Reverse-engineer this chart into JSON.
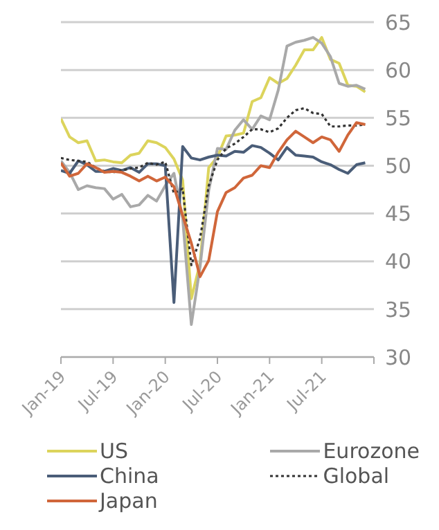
{
  "chart_data": {
    "type": "line",
    "x": [
      "2019-01",
      "2019-02",
      "2019-03",
      "2019-04",
      "2019-05",
      "2019-06",
      "2019-07",
      "2019-08",
      "2019-09",
      "2019-10",
      "2019-11",
      "2019-12",
      "2020-01",
      "2020-02",
      "2020-03",
      "2020-04",
      "2020-05",
      "2020-06",
      "2020-07",
      "2020-08",
      "2020-09",
      "2020-10",
      "2020-11",
      "2020-12",
      "2021-01",
      "2021-02",
      "2021-03",
      "2021-04",
      "2021-05",
      "2021-06",
      "2021-07",
      "2021-08",
      "2021-09",
      "2021-10",
      "2021-11",
      "2021-12"
    ],
    "series": [
      {
        "name": "US",
        "color": "#dcd45c",
        "values": [
          54.9,
          53.0,
          52.4,
          52.6,
          50.5,
          50.6,
          50.4,
          50.3,
          51.1,
          51.3,
          52.6,
          52.4,
          51.9,
          50.7,
          48.5,
          36.1,
          39.8,
          49.8,
          50.9,
          53.1,
          53.2,
          53.4,
          56.7,
          57.1,
          59.2,
          58.6,
          59.1,
          60.5,
          62.1,
          62.1,
          63.4,
          61.1,
          60.7,
          58.4,
          58.3,
          57.7
        ]
      },
      {
        "name": "Eurozone",
        "color": "#a9a9a9",
        "values": [
          50.5,
          49.3,
          47.5,
          47.9,
          47.7,
          47.6,
          46.5,
          47.0,
          45.7,
          45.9,
          46.9,
          46.3,
          47.9,
          49.2,
          44.5,
          33.4,
          39.4,
          47.4,
          51.8,
          51.7,
          53.7,
          54.8,
          53.8,
          55.2,
          54.8,
          57.9,
          62.5,
          62.9,
          63.1,
          63.4,
          62.8,
          61.4,
          58.6,
          58.3,
          58.4,
          58.0
        ]
      },
      {
        "name": "China",
        "color": "#4a5d78",
        "values": [
          49.5,
          49.2,
          50.5,
          50.1,
          49.4,
          49.4,
          49.7,
          49.5,
          49.8,
          49.3,
          50.2,
          50.2,
          50.0,
          35.7,
          52.0,
          50.8,
          50.6,
          50.9,
          51.1,
          51.0,
          51.5,
          51.4,
          52.1,
          51.9,
          51.3,
          50.6,
          51.9,
          51.1,
          51.0,
          50.9,
          50.4,
          50.1,
          49.6,
          49.2,
          50.1,
          50.3
        ]
      },
      {
        "name": "Global",
        "color": "#333333",
        "line_style": "dotted",
        "values": [
          50.8,
          50.6,
          50.5,
          50.4,
          49.8,
          49.4,
          49.3,
          49.5,
          49.7,
          49.8,
          50.3,
          50.1,
          50.4,
          47.1,
          47.6,
          39.6,
          42.4,
          47.9,
          50.6,
          51.8,
          52.3,
          53.0,
          53.8,
          53.8,
          53.5,
          53.9,
          55.0,
          55.8,
          56.0,
          55.5,
          55.4,
          54.1,
          54.1,
          54.2,
          54.2,
          54.3
        ]
      },
      {
        "name": "Japan",
        "color": "#d0663a",
        "values": [
          50.3,
          48.9,
          49.2,
          50.2,
          49.8,
          49.3,
          49.4,
          49.3,
          48.9,
          48.4,
          48.9,
          48.4,
          48.8,
          47.8,
          44.8,
          41.9,
          38.4,
          40.1,
          45.2,
          47.2,
          47.7,
          48.7,
          49.0,
          50.0,
          49.8,
          51.4,
          52.7,
          53.6,
          53.0,
          52.4,
          53.0,
          52.7,
          51.5,
          53.2,
          54.5,
          54.3
        ]
      }
    ],
    "xlim": [
      "2019-01",
      "2022-01"
    ],
    "xticks": [
      {
        "value": "2019-01",
        "label": "Jan-19"
      },
      {
        "value": "2019-07",
        "label": "Jul-19"
      },
      {
        "value": "2020-01",
        "label": "Jan-20"
      },
      {
        "value": "2020-07",
        "label": "Jul-20"
      },
      {
        "value": "2021-01",
        "label": "Jan-21"
      },
      {
        "value": "2021-07",
        "label": "Jul-21"
      },
      {
        "value": "2022-01",
        "label": null
      }
    ],
    "ylim": [
      30,
      65
    ],
    "yticks": [
      30,
      35,
      40,
      45,
      50,
      55,
      60,
      65
    ],
    "grid": "y",
    "legend": "bottom",
    "line_style": "solid",
    "marker": "none"
  }
}
